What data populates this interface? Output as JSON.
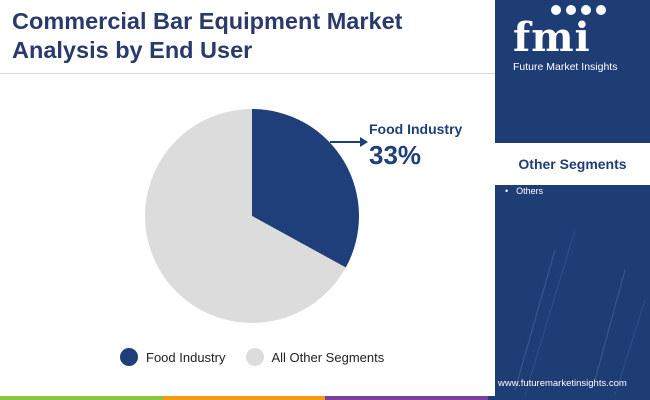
{
  "header": {
    "title": "Commercial Bar Equipment Market\nAnalysis by End User"
  },
  "chart_data": {
    "type": "pie",
    "title": "Commercial Bar Equipment Market Analysis by End User",
    "slices": [
      {
        "name": "Food Industry",
        "value": 33,
        "color": "#1e3f7a"
      },
      {
        "name": "All Other Segments",
        "value": 67,
        "color": "#dcdcdc"
      }
    ],
    "callout": {
      "label": "Food Industry",
      "value": "33%"
    },
    "legend_position": "bottom"
  },
  "legend": {
    "items": [
      {
        "label": "Food Industry",
        "color": "#1e3f7a"
      },
      {
        "label": "All Other Segments",
        "color": "#dcdcdc"
      }
    ]
  },
  "panel": {
    "logo_text": "fmi",
    "logo_tagline": "Future Market Insights",
    "heading": "Other Segments",
    "items": [
      "Others"
    ],
    "background_color": "#1f3d75"
  },
  "footer": {
    "url": "www.futuremarketinsights.com",
    "bar_colors": [
      "#8cc63f",
      "#f39c12",
      "#7b3f9e",
      "#1f3d75"
    ]
  },
  "icons": {
    "callout_arrow": "arrow-right-icon",
    "logo_icons": [
      "transport-icon",
      "globe-icon",
      "leaf-icon",
      "tech-icon"
    ]
  }
}
